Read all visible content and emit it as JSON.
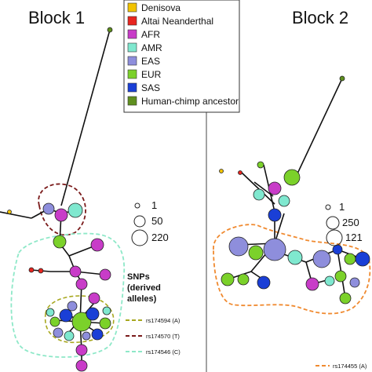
{
  "panels": [
    {
      "title": "Block 1"
    },
    {
      "title": "Block 2"
    }
  ],
  "legend": {
    "entries": [
      {
        "label": "Denisova",
        "color": "#f2c300"
      },
      {
        "label": "Altai Neanderthal",
        "color": "#e8251f"
      },
      {
        "label": "AFR",
        "color": "#c83cc8"
      },
      {
        "label": "AMR",
        "color": "#7fe8cf"
      },
      {
        "label": "EAS",
        "color": "#8e8edc"
      },
      {
        "label": "EUR",
        "color": "#7bd12a"
      },
      {
        "label": "SAS",
        "color": "#1a3fd6"
      },
      {
        "label": "Human-chimp ancestor",
        "color": "#5f8f1f"
      }
    ]
  },
  "size_legend_block1": [
    "1",
    "50",
    "220"
  ],
  "size_legend_block2": [
    "1",
    "250",
    "121"
  ],
  "snps_block1": {
    "title_lines": [
      "SNPs",
      "(derived",
      "alleles)"
    ],
    "items": [
      {
        "label": "rs174594 (A)",
        "color": "#a8a820"
      },
      {
        "label": "rs174570 (T)",
        "color": "#7a1a1a"
      },
      {
        "label": "rs174546 (C)",
        "color": "#8ee8c8"
      }
    ]
  },
  "snps_block2": {
    "items": [
      {
        "label": "rs174455 (A)",
        "color": "#f08a30"
      }
    ]
  }
}
